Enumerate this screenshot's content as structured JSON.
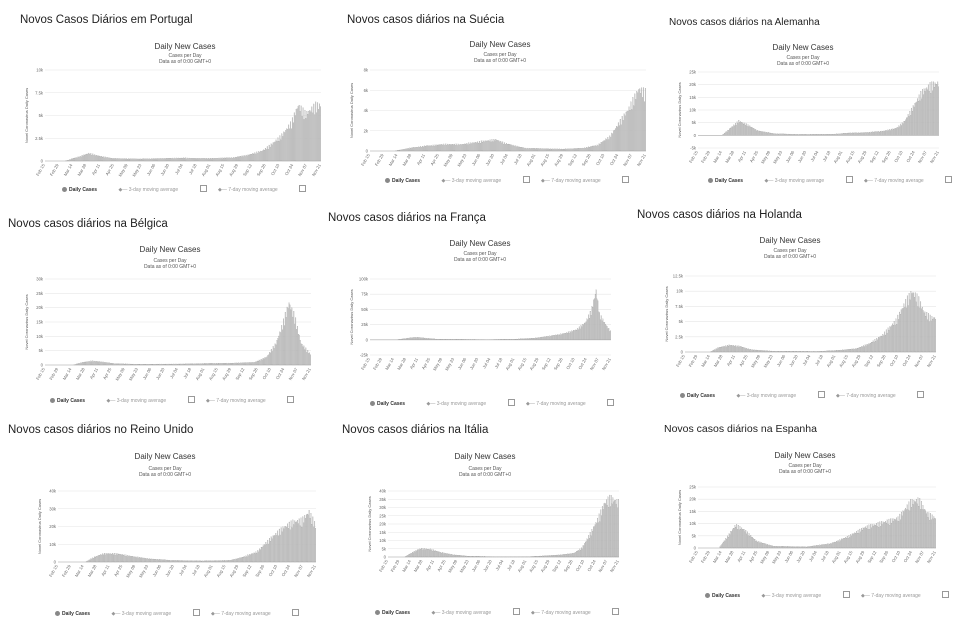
{
  "panels": [
    {
      "id": "pt",
      "heading": "Novos Casos Diários em Portugal"
    },
    {
      "id": "se",
      "heading": "Novos casos diários na Suécia"
    },
    {
      "id": "de",
      "heading": "Novos casos diários na Alemanha"
    },
    {
      "id": "be",
      "heading": "Novos casos diários na Bélgica"
    },
    {
      "id": "fr",
      "heading": "Novos casos diários na França"
    },
    {
      "id": "nl",
      "heading": "Novos casos diários na Holanda"
    },
    {
      "id": "uk",
      "heading": "Novos casos diários no Reino Unido"
    },
    {
      "id": "it",
      "heading": "Novos casos diários na Itália"
    },
    {
      "id": "es",
      "heading": "Novos casos diários na Espanha"
    }
  ],
  "common": {
    "chart_title": "Daily New Cases",
    "subtitle1": "Cases per Day",
    "subtitle2": "Data as of 0:00 GMT+0",
    "ylabel": "Novel Coronavirus Daily Cases",
    "legend": {
      "daily": "Daily Cases",
      "avg3": "3-day moving average",
      "avg7": "7-day moving average"
    }
  },
  "chart_data": [
    {
      "id": "pt",
      "type": "bar",
      "title": "Daily New Cases",
      "ylabel": "Novel Coronavirus Daily Cases",
      "ylim": [
        0,
        10000
      ],
      "yticks": [
        0,
        2500,
        5000,
        7500,
        10000
      ],
      "ytick_labels": [
        "0",
        "2.5k",
        "5k",
        "7.5k",
        "10k"
      ],
      "xtick_labels": [
        "Feb 15",
        "Feb 29",
        "Mar 14",
        "Mar 28",
        "Apr 11",
        "Apr 25",
        "May 09",
        "May 23",
        "Jun 06",
        "Jun 20",
        "Jul 04",
        "Jul 18",
        "Aug 01",
        "Aug 15",
        "Aug 29",
        "Sep 12",
        "Sep 26",
        "Oct 10",
        "Oct 24",
        "Nov 07",
        "Nov 21"
      ],
      "keypoints": [
        [
          0,
          0
        ],
        [
          20,
          0
        ],
        [
          35,
          500
        ],
        [
          45,
          900
        ],
        [
          55,
          600
        ],
        [
          70,
          300
        ],
        [
          100,
          250
        ],
        [
          140,
          350
        ],
        [
          170,
          300
        ],
        [
          195,
          400
        ],
        [
          210,
          700
        ],
        [
          225,
          1200
        ],
        [
          235,
          2000
        ],
        [
          245,
          3000
        ],
        [
          255,
          4500
        ],
        [
          262,
          6500
        ],
        [
          270,
          5500
        ],
        [
          280,
          6500
        ],
        [
          285,
          6500
        ]
      ]
    },
    {
      "id": "se",
      "type": "bar",
      "title": "Daily New Cases",
      "ylabel": "Novel Coronavirus Daily Cases",
      "ylim": [
        0,
        8000
      ],
      "yticks": [
        0,
        2000,
        4000,
        6000,
        8000
      ],
      "ytick_labels": [
        "0",
        "2k",
        "4k",
        "6k",
        "8k"
      ],
      "xtick_labels": [
        "Feb 15",
        "Feb 29",
        "Mar 14",
        "Mar 28",
        "Apr 11",
        "Apr 25",
        "May 09",
        "May 23",
        "Jun 06",
        "Jun 20",
        "Jul 04",
        "Jul 18",
        "Aug 01",
        "Aug 15",
        "Aug 29",
        "Sep 12",
        "Sep 26",
        "Oct 10",
        "Oct 24",
        "Nov 07",
        "Nov 21"
      ],
      "keypoints": [
        [
          0,
          0
        ],
        [
          25,
          0
        ],
        [
          40,
          300
        ],
        [
          55,
          500
        ],
        [
          75,
          700
        ],
        [
          95,
          700
        ],
        [
          115,
          1000
        ],
        [
          130,
          1200
        ],
        [
          140,
          800
        ],
        [
          160,
          300
        ],
        [
          200,
          200
        ],
        [
          220,
          300
        ],
        [
          235,
          600
        ],
        [
          248,
          1500
        ],
        [
          258,
          3000
        ],
        [
          268,
          4500
        ],
        [
          278,
          6500
        ],
        [
          285,
          6200
        ]
      ]
    },
    {
      "id": "de",
      "type": "bar",
      "title": "Daily New Cases",
      "ylabel": "Novel Coronavirus Daily Cases",
      "ylim": [
        -5000,
        25000
      ],
      "yticks": [
        -5000,
        0,
        5000,
        10000,
        15000,
        20000,
        25000
      ],
      "ytick_labels": [
        "-5k",
        "0",
        "5k",
        "10k",
        "15k",
        "20k",
        "25k"
      ],
      "xtick_labels": [
        "Feb 15",
        "Feb 29",
        "Mar 14",
        "Mar 28",
        "Apr 11",
        "Apr 25",
        "May 09",
        "May 23",
        "Jun 06",
        "Jun 20",
        "Jul 04",
        "Jul 18",
        "Aug 01",
        "Aug 15",
        "Aug 29",
        "Sep 12",
        "Sep 26",
        "Oct 10",
        "Oct 24",
        "Nov 07",
        "Nov 21"
      ],
      "keypoints": [
        [
          0,
          0
        ],
        [
          28,
          0
        ],
        [
          38,
          3000
        ],
        [
          48,
          6000
        ],
        [
          58,
          4500
        ],
        [
          70,
          2000
        ],
        [
          90,
          700
        ],
        [
          120,
          400
        ],
        [
          160,
          500
        ],
        [
          180,
          1000
        ],
        [
          200,
          1200
        ],
        [
          220,
          1800
        ],
        [
          235,
          3000
        ],
        [
          245,
          6000
        ],
        [
          255,
          12000
        ],
        [
          265,
          18000
        ],
        [
          275,
          21000
        ],
        [
          285,
          22000
        ]
      ]
    },
    {
      "id": "be",
      "type": "bar",
      "title": "Daily New Cases",
      "ylabel": "Novel Coronavirus Daily Cases",
      "ylim": [
        0,
        30000
      ],
      "yticks": [
        0,
        5000,
        10000,
        15000,
        20000,
        25000,
        30000
      ],
      "ytick_labels": [
        "0",
        "5k",
        "10k",
        "15k",
        "20k",
        "25k",
        "30k"
      ],
      "xtick_labels": [
        "Feb 15",
        "Feb 29",
        "Mar 14",
        "Mar 28",
        "Apr 11",
        "Apr 25",
        "May 09",
        "May 23",
        "Jun 06",
        "Jun 20",
        "Jul 04",
        "Jul 18",
        "Aug 01",
        "Aug 15",
        "Aug 29",
        "Sep 12",
        "Sep 26",
        "Oct 10",
        "Oct 24",
        "Nov 07",
        "Nov 21"
      ],
      "keypoints": [
        [
          0,
          0
        ],
        [
          30,
          0
        ],
        [
          40,
          1000
        ],
        [
          50,
          1500
        ],
        [
          60,
          1200
        ],
        [
          75,
          500
        ],
        [
          100,
          300
        ],
        [
          150,
          400
        ],
        [
          175,
          600
        ],
        [
          200,
          700
        ],
        [
          225,
          1000
        ],
        [
          238,
          3000
        ],
        [
          248,
          8000
        ],
        [
          255,
          15000
        ],
        [
          262,
          23000
        ],
        [
          268,
          18000
        ],
        [
          275,
          8000
        ],
        [
          285,
          4000
        ]
      ]
    },
    {
      "id": "fr",
      "type": "bar",
      "title": "Daily New Cases",
      "ylabel": "Novel Coronavirus Daily Cases",
      "ylim": [
        -25000,
        100000
      ],
      "yticks": [
        -25000,
        0,
        25000,
        50000,
        75000,
        100000
      ],
      "ytick_labels": [
        "-25k",
        "0",
        "25k",
        "50k",
        "75k",
        "100k"
      ],
      "xtick_labels": [
        "Feb 15",
        "Feb 29",
        "Mar 14",
        "Mar 28",
        "Apr 11",
        "Apr 25",
        "May 09",
        "May 23",
        "Jun 06",
        "Jun 20",
        "Jul 04",
        "Jul 18",
        "Aug 01",
        "Aug 15",
        "Aug 29",
        "Sep 12",
        "Sep 26",
        "Oct 10",
        "Oct 24",
        "Nov 07",
        "Nov 21"
      ],
      "keypoints": [
        [
          0,
          0
        ],
        [
          30,
          0
        ],
        [
          45,
          3000
        ],
        [
          55,
          4500
        ],
        [
          65,
          3000
        ],
        [
          80,
          1000
        ],
        [
          140,
          500
        ],
        [
          170,
          1000
        ],
        [
          195,
          3000
        ],
        [
          215,
          7000
        ],
        [
          230,
          11000
        ],
        [
          245,
          18000
        ],
        [
          255,
          30000
        ],
        [
          262,
          50000
        ],
        [
          268,
          86000
        ],
        [
          272,
          45000
        ],
        [
          280,
          25000
        ],
        [
          285,
          15000
        ]
      ]
    },
    {
      "id": "nl",
      "type": "bar",
      "title": "Daily New Cases",
      "ylabel": "Novel Coronavirus Daily Cases",
      "ylim": [
        0,
        12500
      ],
      "yticks": [
        0,
        2500,
        5000,
        7500,
        10000,
        12500
      ],
      "ytick_labels": [
        "0",
        "2.5k",
        "5k",
        "7.5k",
        "10k",
        "12.5k"
      ],
      "xtick_labels": [
        "Feb 15",
        "Feb 29",
        "Mar 14",
        "Mar 28",
        "Apr 11",
        "Apr 25",
        "May 09",
        "May 23",
        "Jun 06",
        "Jun 20",
        "Jul 04",
        "Jul 18",
        "Aug 01",
        "Aug 15",
        "Aug 29",
        "Sep 12",
        "Sep 26",
        "Oct 10",
        "Oct 24",
        "Nov 07",
        "Nov 21"
      ],
      "keypoints": [
        [
          0,
          0
        ],
        [
          28,
          0
        ],
        [
          38,
          800
        ],
        [
          50,
          1200
        ],
        [
          62,
          1000
        ],
        [
          75,
          400
        ],
        [
          100,
          150
        ],
        [
          150,
          100
        ],
        [
          175,
          300
        ],
        [
          195,
          600
        ],
        [
          210,
          1500
        ],
        [
          225,
          3000
        ],
        [
          240,
          5500
        ],
        [
          250,
          8500
        ],
        [
          258,
          10500
        ],
        [
          265,
          9500
        ],
        [
          272,
          7000
        ],
        [
          280,
          6000
        ],
        [
          285,
          6000
        ]
      ]
    },
    {
      "id": "uk",
      "type": "bar",
      "title": "Daily New Cases",
      "ylabel": "Novel Coronavirus Daily Cases",
      "ylim": [
        0,
        40000
      ],
      "yticks": [
        0,
        10000,
        20000,
        30000,
        40000
      ],
      "ytick_labels": [
        "0",
        "10k",
        "20k",
        "30k",
        "40k"
      ],
      "xtick_labels": [
        "Feb 15",
        "Feb 29",
        "Mar 14",
        "Mar 28",
        "Apr 11",
        "Apr 25",
        "May 09",
        "May 23",
        "Jun 06",
        "Jun 20",
        "Jul 04",
        "Jul 18",
        "Aug 01",
        "Aug 15",
        "Aug 29",
        "Sep 12",
        "Sep 26",
        "Oct 10",
        "Oct 24",
        "Nov 07",
        "Nov 21"
      ],
      "keypoints": [
        [
          0,
          0
        ],
        [
          30,
          0
        ],
        [
          40,
          3000
        ],
        [
          50,
          5000
        ],
        [
          65,
          5000
        ],
        [
          80,
          3500
        ],
        [
          100,
          2000
        ],
        [
          125,
          1000
        ],
        [
          160,
          700
        ],
        [
          190,
          1000
        ],
        [
          205,
          3000
        ],
        [
          220,
          6000
        ],
        [
          235,
          14000
        ],
        [
          248,
          20000
        ],
        [
          260,
          24000
        ],
        [
          270,
          25000
        ],
        [
          278,
          30000
        ],
        [
          285,
          22000
        ]
      ]
    },
    {
      "id": "it",
      "type": "bar",
      "title": "Daily New Cases",
      "ylabel": "Novel Coronavirus Daily Cases",
      "ylim": [
        0,
        40000
      ],
      "yticks": [
        0,
        5000,
        10000,
        15000,
        20000,
        25000,
        30000,
        35000,
        40000
      ],
      "ytick_labels": [
        "0",
        "5k",
        "10k",
        "15k",
        "20k",
        "25k",
        "30k",
        "35k",
        "40k"
      ],
      "xtick_labels": [
        "Feb 15",
        "Feb 29",
        "Mar 14",
        "Mar 28",
        "Apr 11",
        "Apr 25",
        "May 09",
        "May 23",
        "Jun 06",
        "Jun 20",
        "Jul 04",
        "Jul 18",
        "Aug 01",
        "Aug 15",
        "Aug 29",
        "Sep 12",
        "Sep 26",
        "Oct 10",
        "Oct 24",
        "Nov 07",
        "Nov 21"
      ],
      "keypoints": [
        [
          0,
          0
        ],
        [
          20,
          0
        ],
        [
          30,
          3000
        ],
        [
          40,
          5500
        ],
        [
          52,
          5000
        ],
        [
          65,
          3000
        ],
        [
          80,
          1500
        ],
        [
          100,
          500
        ],
        [
          140,
          200
        ],
        [
          175,
          300
        ],
        [
          195,
          800
        ],
        [
          215,
          1500
        ],
        [
          230,
          2500
        ],
        [
          240,
          6000
        ],
        [
          250,
          15000
        ],
        [
          260,
          25000
        ],
        [
          268,
          35000
        ],
        [
          275,
          38000
        ],
        [
          285,
          35000
        ]
      ]
    },
    {
      "id": "es",
      "type": "bar",
      "title": "Daily New Cases",
      "ylabel": "Novel Coronavirus Daily Cases",
      "ylim": [
        0,
        25000
      ],
      "yticks": [
        0,
        5000,
        10000,
        15000,
        20000,
        25000
      ],
      "ytick_labels": [
        "0",
        "5k",
        "10k",
        "15k",
        "20k",
        "25k"
      ],
      "xtick_labels": [
        "Feb 15",
        "Feb 29",
        "Mar 14",
        "Mar 28",
        "Apr 11",
        "Apr 25",
        "May 09",
        "May 23",
        "Jun 06",
        "Jun 20",
        "Jul 04",
        "Jul 18",
        "Aug 01",
        "Aug 15",
        "Aug 29",
        "Sep 12",
        "Sep 26",
        "Oct 10",
        "Oct 24",
        "Nov 07",
        "Nov 21"
      ],
      "keypoints": [
        [
          0,
          0
        ],
        [
          25,
          0
        ],
        [
          35,
          5000
        ],
        [
          45,
          10000
        ],
        [
          55,
          8000
        ],
        [
          70,
          3000
        ],
        [
          90,
          800
        ],
        [
          130,
          500
        ],
        [
          160,
          2000
        ],
        [
          180,
          5000
        ],
        [
          200,
          9000
        ],
        [
          220,
          11000
        ],
        [
          240,
          13000
        ],
        [
          255,
          20000
        ],
        [
          265,
          21000
        ],
        [
          275,
          15000
        ],
        [
          285,
          13000
        ]
      ]
    }
  ]
}
